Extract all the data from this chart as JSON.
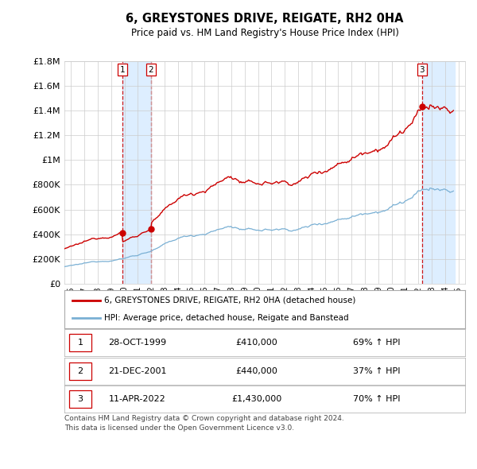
{
  "title": "6, GREYSTONES DRIVE, REIGATE, RH2 0HA",
  "subtitle": "Price paid vs. HM Land Registry's House Price Index (HPI)",
  "legend_line1": "6, GREYSTONES DRIVE, REIGATE, RH2 0HA (detached house)",
  "legend_line2": "HPI: Average price, detached house, Reigate and Banstead",
  "footer": "Contains HM Land Registry data © Crown copyright and database right 2024.\nThis data is licensed under the Open Government Licence v3.0.",
  "sales": [
    {
      "num": 1,
      "date": "28-OCT-1999",
      "price": 410000,
      "pct": "69%",
      "dir": "↑"
    },
    {
      "num": 2,
      "date": "21-DEC-2001",
      "price": 440000,
      "pct": "37%",
      "dir": "↑"
    },
    {
      "num": 3,
      "date": "11-APR-2022",
      "price": 1430000,
      "pct": "70%",
      "dir": "↑"
    }
  ],
  "sale_years": [
    1999.83,
    2001.97,
    2022.28
  ],
  "sale_prices": [
    410000,
    440000,
    1430000
  ],
  "ylim": [
    0,
    1800000
  ],
  "yticks": [
    0,
    200000,
    400000,
    600000,
    800000,
    1000000,
    1200000,
    1400000,
    1600000,
    1800000
  ],
  "ytick_labels": [
    "£0",
    "£200K",
    "£400K",
    "£600K",
    "£800K",
    "£1M",
    "£1.2M",
    "£1.4M",
    "£1.6M",
    "£1.8M"
  ],
  "red_color": "#cc0000",
  "blue_color": "#7ab0d4",
  "shade_color": "#ddeeff",
  "grid_color": "#cccccc",
  "bg_color": "#ffffff",
  "xlim_start": 1995.5,
  "xlim_end": 2025.5
}
